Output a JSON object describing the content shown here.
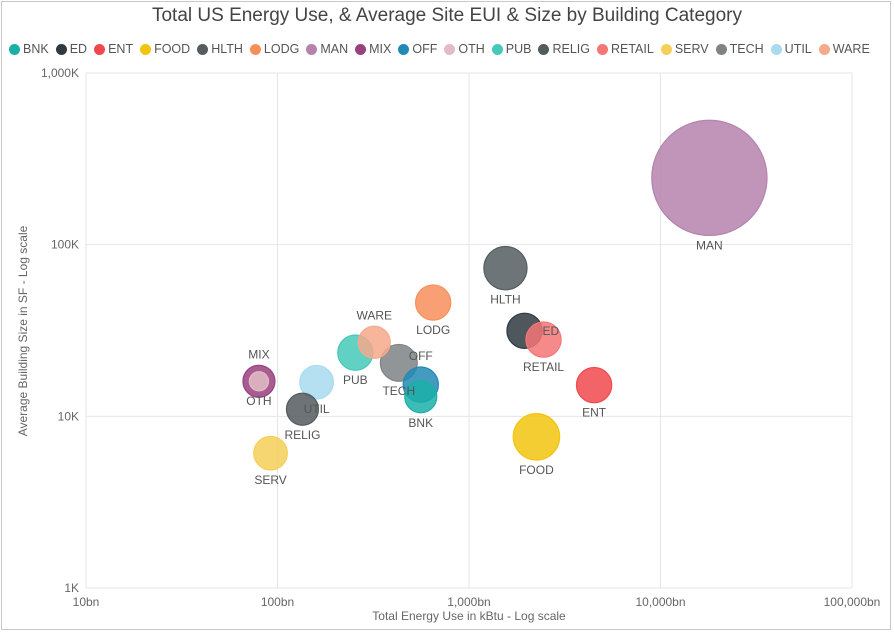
{
  "chart_data": {
    "type": "scatter",
    "title": "Total US Energy Use, & Average Site EUI & Size by Building Category",
    "xlabel": "Total Energy Use in kBtu - Log scale",
    "ylabel": "Average Building Size in SF - Log scale",
    "x_scale": "log",
    "y_scale": "log",
    "xlim": [
      10,
      100000
    ],
    "ylim": [
      1000,
      1000000
    ],
    "x_ticks": [
      "10bn",
      "100bn",
      "1,000bn",
      "10,000bn",
      "100,000bn"
    ],
    "y_ticks": [
      "1K",
      "10K",
      "100K",
      "1,000K"
    ],
    "grid": true,
    "legend_position": "top-left",
    "series": [
      {
        "name": "BNK",
        "color": "#1ab0a8",
        "x": 560,
        "y": 13000,
        "size": 1.0,
        "label_position": "below"
      },
      {
        "name": "ED",
        "color": "#2f3a40",
        "x": 1950,
        "y": 31500,
        "size": 1.1,
        "label_position": "right"
      },
      {
        "name": "ENT",
        "color": "#f0494d",
        "x": 4500,
        "y": 15200,
        "size": 1.1,
        "label_position": "below"
      },
      {
        "name": "FOOD",
        "color": "#f2c40f",
        "x": 2250,
        "y": 7600,
        "size": 1.45,
        "label_position": "below"
      },
      {
        "name": "HLTH",
        "color": "#555d60",
        "x": 1550,
        "y": 73000,
        "size": 1.35,
        "label_position": "below"
      },
      {
        "name": "LODG",
        "color": "#f78f5a",
        "x": 650,
        "y": 46000,
        "size": 1.1,
        "label_position": "below"
      },
      {
        "name": "MAN",
        "color": "#b583ad",
        "x": 18000,
        "y": 245000,
        "size": 3.6,
        "label_position": "below"
      },
      {
        "name": "MIX",
        "color": "#99417f",
        "x": 80,
        "y": 16000,
        "size": 1.0,
        "label_position": "above"
      },
      {
        "name": "OFF",
        "color": "#2289b4",
        "x": 560,
        "y": 15300,
        "size": 1.1,
        "label_position": "above"
      },
      {
        "name": "OTH",
        "color": "#e2bcc4",
        "x": 80,
        "y": 16000,
        "size": 0.6,
        "label_position": "below"
      },
      {
        "name": "PUB",
        "color": "#45c9b9",
        "x": 255,
        "y": 23500,
        "size": 1.1,
        "label_position": "below"
      },
      {
        "name": "RELIG",
        "color": "#545b5e",
        "x": 135,
        "y": 11000,
        "size": 1.0,
        "label_position": "below"
      },
      {
        "name": "RETAIL",
        "color": "#f47677",
        "x": 2450,
        "y": 28000,
        "size": 1.1,
        "label_position": "below"
      },
      {
        "name": "SERV",
        "color": "#f5cf57",
        "x": 92,
        "y": 6100,
        "size": 1.05,
        "label_position": "below"
      },
      {
        "name": "TECH",
        "color": "#7e8385",
        "x": 430,
        "y": 20500,
        "size": 1.15,
        "label_position": "below"
      },
      {
        "name": "UTIL",
        "color": "#a8daf0",
        "x": 160,
        "y": 15800,
        "size": 1.05,
        "label_position": "below"
      },
      {
        "name": "WARE",
        "color": "#f6a98b",
        "x": 320,
        "y": 27000,
        "size": 1.0,
        "label_position": "above"
      }
    ]
  }
}
